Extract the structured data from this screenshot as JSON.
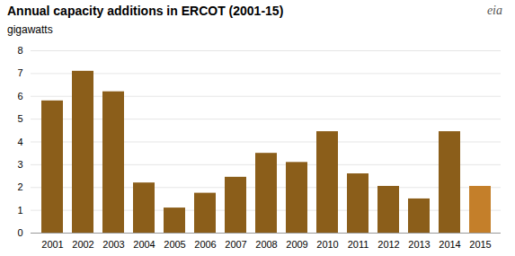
{
  "chart_data": {
    "type": "bar",
    "title": "Annual capacity additions in ERCOT  (2001-15)",
    "ylabel": "gigawatts",
    "annotations": [
      "eia"
    ],
    "categories": [
      "2001",
      "2002",
      "2003",
      "2004",
      "2005",
      "2006",
      "2007",
      "2008",
      "2009",
      "2010",
      "2011",
      "2012",
      "2013",
      "2014",
      "2015"
    ],
    "values": [
      5.8,
      7.1,
      6.2,
      2.2,
      1.1,
      1.75,
      2.45,
      3.5,
      3.1,
      4.45,
      2.6,
      2.05,
      1.5,
      4.45,
      2.05
    ],
    "colors": [
      "#8B5E1A",
      "#8B5E1A",
      "#8B5E1A",
      "#8B5E1A",
      "#8B5E1A",
      "#8B5E1A",
      "#8B5E1A",
      "#8B5E1A",
      "#8B5E1A",
      "#8B5E1A",
      "#8B5E1A",
      "#8B5E1A",
      "#8B5E1A",
      "#8B5E1A",
      "#C47F2A"
    ],
    "ylim": [
      0,
      8
    ],
    "yticks": [
      0,
      1,
      2,
      3,
      4,
      5,
      6,
      7,
      8
    ],
    "grid": true
  }
}
